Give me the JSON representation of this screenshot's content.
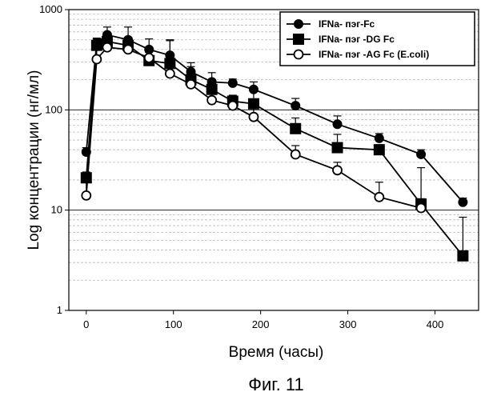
{
  "figure_caption": "Фиг. 11",
  "chart_data": {
    "type": "line",
    "title": "",
    "xlabel": "Время (часы)",
    "ylabel": "Log концентрации (нг/мл)",
    "x_scale": "linear",
    "y_scale": "log",
    "xlim": [
      -20,
      450
    ],
    "ylim": [
      1,
      1000
    ],
    "x_ticks": [
      0,
      100,
      200,
      300,
      400
    ],
    "x_tick_labels": [
      "0",
      "100",
      "200",
      "300",
      "400"
    ],
    "y_ticks": [
      1,
      10,
      100,
      1000
    ],
    "y_tick_labels": [
      "1",
      "10",
      "100",
      "1000"
    ],
    "grid": "horizontal",
    "legend_position": "top-right",
    "series": [
      {
        "name": "IFNa- пэг-Fc",
        "marker": "filled-circle",
        "x": [
          0,
          12,
          24,
          48,
          72,
          96,
          120,
          144,
          168,
          192,
          240,
          288,
          336,
          384,
          432
        ],
        "y": [
          38,
          470,
          560,
          500,
          400,
          350,
          240,
          190,
          185,
          160,
          110,
          72,
          52,
          36,
          12
        ],
        "err": [
          4,
          40,
          110,
          170,
          110,
          140,
          55,
          45,
          18,
          30,
          20,
          15,
          6,
          4,
          1.2
        ]
      },
      {
        "name": "IFNa- пэг -DG Fc",
        "marker": "filled-square",
        "x": [
          0,
          12,
          24,
          48,
          72,
          96,
          120,
          144,
          168,
          192,
          240,
          288,
          336,
          384,
          432
        ],
        "y": [
          21,
          440,
          480,
          440,
          310,
          290,
          200,
          160,
          122,
          115,
          65,
          42,
          40,
          11.5,
          3.5
        ],
        "err": [
          3,
          80,
          110,
          70,
          65,
          210,
          70,
          40,
          18,
          40,
          18,
          15,
          5,
          15,
          5
        ]
      },
      {
        "name": "IFNa- пэг -AG Fc (E.coli)",
        "marker": "open-circle",
        "x": [
          0,
          12,
          24,
          48,
          72,
          96,
          120,
          144,
          168,
          192,
          240,
          288,
          336,
          384
        ],
        "y": [
          14,
          320,
          420,
          400,
          330,
          230,
          180,
          125,
          110,
          85,
          36,
          25,
          13.5,
          10.5
        ],
        "err": [
          6,
          170,
          130,
          130,
          70,
          45,
          50,
          35,
          25,
          35,
          8,
          5,
          5.5,
          2.5
        ]
      }
    ]
  }
}
